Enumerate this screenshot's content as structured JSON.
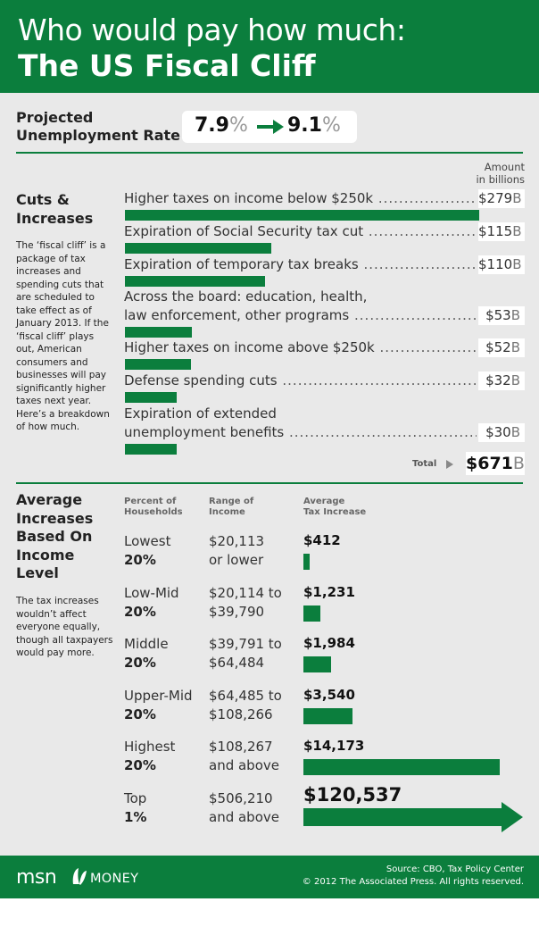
{
  "header": {
    "title_line1": "Who would pay how much:",
    "title_line2": "The US Fiscal Cliff"
  },
  "unemployment": {
    "label": "Projected\nUnemployment Rate",
    "from": "7.9",
    "to": "9.1",
    "pct_symbol": "%"
  },
  "cuts": {
    "title": "Cuts &\nIncreases",
    "description": "The ‘fiscal cliff’ is a package of tax increases and spending cuts that are scheduled to take effect as of January 2013. If the ‘fiscal cliff’ plays out, American consumers and businesses will pay significantly higher taxes next year. Here’s a breakdown of how much.",
    "amount_header": "Amount\nin billions",
    "unit": "B",
    "total_label": "Total",
    "total_value": "$671"
  },
  "income": {
    "title": "Average\nIncreases\nBased On\nIncome\nLevel",
    "description": "The tax increases wouldn’t affect everyone equally, though all taxpayers would pay more.",
    "col_households": "Percent of\nHouseholds",
    "col_range": "Range of\nIncome",
    "col_tax": "Average\nTax Increase"
  },
  "chart_data": [
    {
      "type": "bar",
      "categories": [
        "Higher taxes on income below $250k",
        "Expiration of Social Security tax cut",
        "Expiration of temporary tax breaks",
        "Across the board: education, health, law enforcement, other programs",
        "Higher taxes on income above $250k",
        "Defense spending cuts",
        "Expiration of extended unemployment benefits"
      ],
      "labels_display": [
        [
          "Higher taxes on income below $250k"
        ],
        [
          "Expiration of Social Security tax cut"
        ],
        [
          "Expiration of temporary tax breaks"
        ],
        [
          "Across the board: education, health,",
          "law enforcement, other programs"
        ],
        [
          "Higher taxes on income above $250k"
        ],
        [
          "Defense spending cuts"
        ],
        [
          "Expiration of extended",
          "unemployment benefits"
        ]
      ],
      "values": [
        279,
        115,
        110,
        53,
        52,
        32,
        30
      ],
      "value_labels": [
        "$279",
        "$115",
        "$110",
        "$53",
        "$52",
        "$32",
        "$30"
      ],
      "ylabel": "Amount in billions"
    },
    {
      "type": "bar",
      "categories": [
        "Lowest 20%",
        "Low-Mid 20%",
        "Middle 20%",
        "Upper-Mid 20%",
        "Highest 20%",
        "Top 1%"
      ],
      "group_names": [
        "Lowest",
        "Low-Mid",
        "Middle",
        "Upper-Mid",
        "Highest",
        "Top"
      ],
      "group_pcts": [
        "20%",
        "20%",
        "20%",
        "20%",
        "20%",
        "1%"
      ],
      "ranges": [
        "$20,113\nor lower",
        "$20,114 to\n$39,790",
        "$39,791 to\n$64,484",
        "$64,485 to\n$108,266",
        "$108,267\nand above",
        "$506,210\nand above"
      ],
      "values": [
        412,
        1231,
        1984,
        3540,
        14173,
        120537
      ],
      "value_labels": [
        "$412",
        "$1,231",
        "$1,984",
        "$3,540",
        "$14,173",
        "$120,537"
      ]
    }
  ],
  "footer": {
    "logo_msn": "msn",
    "logo_money": "MONEY",
    "source": "Source: CBO, Tax Policy Center\n© 2012 The Associated Press. All rights reserved."
  },
  "colors": {
    "brand_green": "#0b7e3d",
    "background": "#e9e9e9"
  }
}
